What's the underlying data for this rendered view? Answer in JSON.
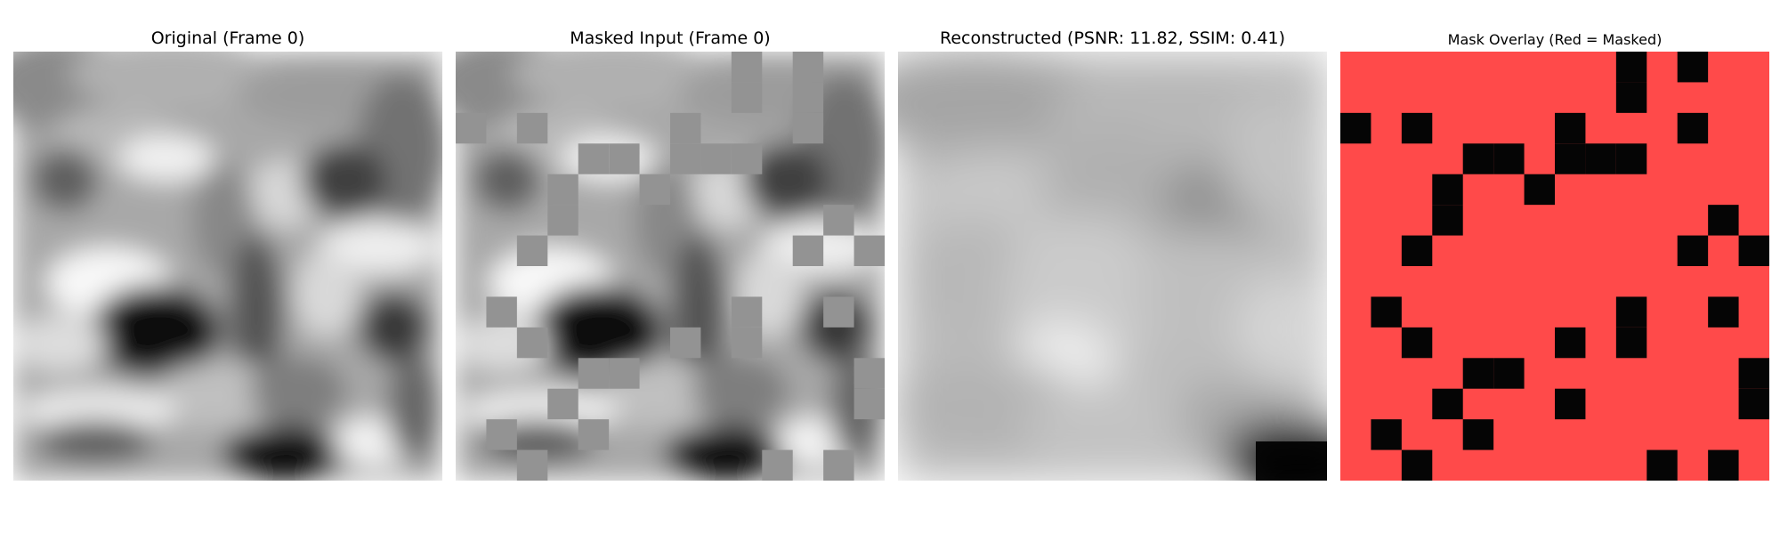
{
  "panels": [
    {
      "title": "Original (Frame 0)"
    },
    {
      "title": "Masked Input (Frame 0)"
    },
    {
      "title": "Reconstructed (PSNR: 11.82, SSIM: 0.41)"
    },
    {
      "title": "Mask Overlay (Red = Masked)"
    }
  ],
  "colors": {
    "masked_fill": "#939393",
    "overlay_red": "#ff4a4a",
    "overlay_black": "#050505"
  },
  "mask": {
    "grid_size": 14,
    "masked_input_cells": [
      [
        0,
        9
      ],
      [
        0,
        11
      ],
      [
        1,
        9
      ],
      [
        1,
        11
      ],
      [
        2,
        0
      ],
      [
        2,
        2
      ],
      [
        2,
        7
      ],
      [
        2,
        11
      ],
      [
        3,
        4
      ],
      [
        3,
        5
      ],
      [
        3,
        7
      ],
      [
        3,
        8
      ],
      [
        3,
        9
      ],
      [
        4,
        3
      ],
      [
        4,
        6
      ],
      [
        5,
        3
      ],
      [
        5,
        12
      ],
      [
        6,
        2
      ],
      [
        6,
        11
      ],
      [
        6,
        13
      ],
      [
        8,
        1
      ],
      [
        8,
        9
      ],
      [
        8,
        12
      ],
      [
        9,
        2
      ],
      [
        9,
        7
      ],
      [
        9,
        9
      ],
      [
        10,
        4
      ],
      [
        10,
        5
      ],
      [
        10,
        13
      ],
      [
        11,
        3
      ],
      [
        11,
        13
      ],
      [
        12,
        1
      ],
      [
        12,
        4
      ],
      [
        13,
        2
      ],
      [
        13,
        10
      ],
      [
        13,
        12
      ]
    ],
    "overlay_black_cells": [
      [
        0,
        9
      ],
      [
        0,
        11
      ],
      [
        1,
        9
      ],
      [
        2,
        0
      ],
      [
        2,
        2
      ],
      [
        2,
        7
      ],
      [
        2,
        11
      ],
      [
        3,
        4
      ],
      [
        3,
        5
      ],
      [
        3,
        7
      ],
      [
        3,
        8
      ],
      [
        3,
        9
      ],
      [
        4,
        3
      ],
      [
        4,
        6
      ],
      [
        5,
        3
      ],
      [
        5,
        12
      ],
      [
        6,
        2
      ],
      [
        6,
        11
      ],
      [
        6,
        13
      ],
      [
        8,
        1
      ],
      [
        8,
        9
      ],
      [
        8,
        12
      ],
      [
        9,
        2
      ],
      [
        9,
        7
      ],
      [
        9,
        9
      ],
      [
        10,
        4
      ],
      [
        10,
        5
      ],
      [
        10,
        13
      ],
      [
        11,
        3
      ],
      [
        11,
        7
      ],
      [
        11,
        13
      ],
      [
        12,
        1
      ],
      [
        12,
        4
      ],
      [
        13,
        2
      ],
      [
        13,
        10
      ],
      [
        13,
        12
      ]
    ]
  }
}
